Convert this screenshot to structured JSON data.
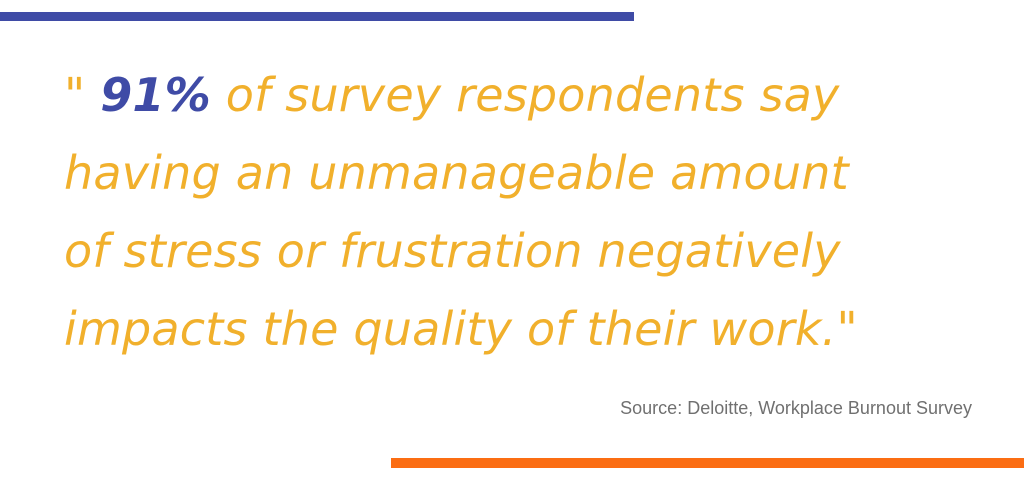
{
  "colors": {
    "top_bar": "#3f4ba6",
    "bottom_bar": "#fb6d13",
    "quote_text": "#f1b02c",
    "highlight_text": "#3f4ba6",
    "source_text": "#707070",
    "background": "#ffffff"
  },
  "quote": {
    "open_mark": "\" ",
    "highlight": "91%",
    "line1_rest": " of survey respondents say",
    "line2": "having an unmanageable amount",
    "line3": "of stress or frustration negatively",
    "line4": "impacts the quality of their work.\""
  },
  "source": "Source: Deloitte, Workplace Burnout Survey"
}
